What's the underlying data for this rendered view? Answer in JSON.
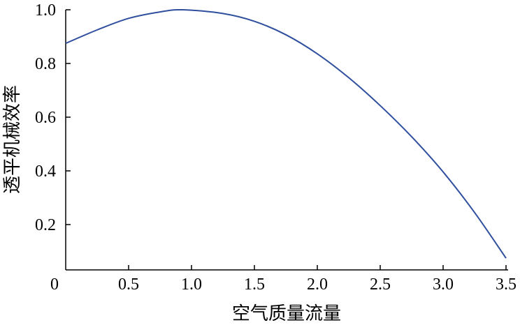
{
  "chart_data": {
    "type": "line",
    "title": "",
    "xlabel": "空气质量流量",
    "ylabel": "透平机械效率",
    "xlim": [
      0,
      3.5
    ],
    "ylim": [
      0.05,
      1.0
    ],
    "grid": false,
    "x_ticks": [
      {
        "value": 0,
        "label": "0"
      },
      {
        "value": 0.5,
        "label": "0.5"
      },
      {
        "value": 1.0,
        "label": "1.0"
      },
      {
        "value": 1.5,
        "label": "1.5"
      },
      {
        "value": 2.0,
        "label": "2.0"
      },
      {
        "value": 2.5,
        "label": "2.5"
      },
      {
        "value": 3.0,
        "label": "3.0"
      },
      {
        "value": 3.5,
        "label": "3.5"
      }
    ],
    "y_ticks": [
      {
        "value": 0.2,
        "label": "0.2"
      },
      {
        "value": 0.4,
        "label": "0.4"
      },
      {
        "value": 0.6,
        "label": "0.6"
      },
      {
        "value": 0.8,
        "label": "0.8"
      },
      {
        "value": 1.0,
        "label": "1.0"
      }
    ],
    "series": [
      {
        "color": "#2f4f9e",
        "x": [
          0,
          0.25,
          0.5,
          0.75,
          0.93,
          1.25,
          1.5,
          1.75,
          2.0,
          2.25,
          2.5,
          2.75,
          3.0,
          3.25,
          3.5
        ],
        "y": [
          0.875,
          0.925,
          0.968,
          0.992,
          1.0,
          0.986,
          0.957,
          0.907,
          0.836,
          0.747,
          0.643,
          0.527,
          0.396,
          0.245,
          0.075
        ]
      }
    ]
  }
}
